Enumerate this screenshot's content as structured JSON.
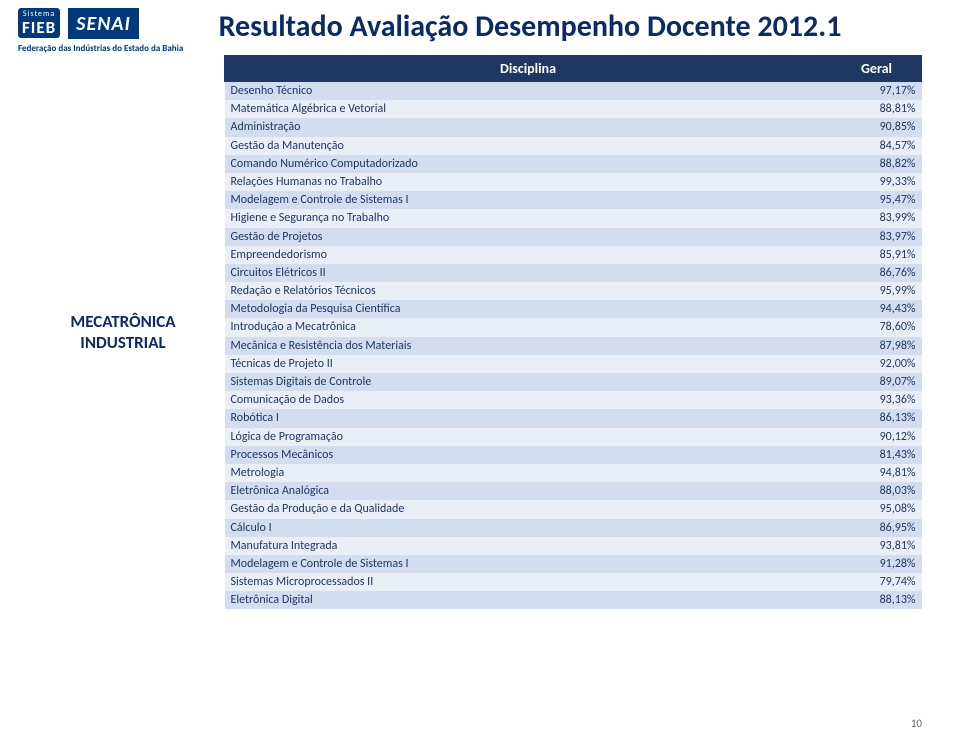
{
  "logo": {
    "sistema": "Sistema",
    "fieb": "FIEB",
    "senai": "SENAI",
    "federation": "Federação das Indústrias do Estado da Bahia"
  },
  "title": "Resultado Avaliação Desempenho Docente 2012.1",
  "category": "MECATRÔNICA INDUSTRIAL",
  "columns": {
    "discipline": "Disciplina",
    "value": "Geral"
  },
  "rows": [
    {
      "name": "Desenho Técnico",
      "pct": "97,17%"
    },
    {
      "name": "Matemática Algébrica e Vetorial",
      "pct": "88,81%"
    },
    {
      "name": "Administração",
      "pct": "90,85%"
    },
    {
      "name": "Gestão da Manutenção",
      "pct": "84,57%"
    },
    {
      "name": "Comando Numérico Computadorizado",
      "pct": "88,82%"
    },
    {
      "name": "Relações Humanas no Trabalho",
      "pct": "99,33%"
    },
    {
      "name": "Modelagem e Controle de Sistemas I",
      "pct": "95,47%"
    },
    {
      "name": "Higiene e Segurança no Trabalho",
      "pct": "83,99%"
    },
    {
      "name": "Gestão de Projetos",
      "pct": "83,97%"
    },
    {
      "name": "Empreendedorismo",
      "pct": "85,91%"
    },
    {
      "name": "Circuitos Elétricos II",
      "pct": "86,76%"
    },
    {
      "name": "Redação e Relatórios Técnicos",
      "pct": "95,99%"
    },
    {
      "name": "Metodologia da Pesquisa Científica",
      "pct": "94,43%"
    },
    {
      "name": "Introdução a Mecatrônica",
      "pct": "78,60%"
    },
    {
      "name": "Mecânica e Resistência dos Materiais",
      "pct": "87,98%"
    },
    {
      "name": "Técnicas de Projeto II",
      "pct": "92,00%"
    },
    {
      "name": "Sistemas Digitais de Controle",
      "pct": "89,07%"
    },
    {
      "name": "Comunicação de Dados",
      "pct": "93,36%"
    },
    {
      "name": "Robótica I",
      "pct": "86,13%"
    },
    {
      "name": "Lógica de Programação",
      "pct": "90,12%"
    },
    {
      "name": "Processos Mecânicos",
      "pct": "81,43%"
    },
    {
      "name": "Metrologia",
      "pct": "94,81%"
    },
    {
      "name": "Eletrônica Analógica",
      "pct": "88,03%"
    },
    {
      "name": "Gestão da Produção e da Qualidade",
      "pct": "95,08%"
    },
    {
      "name": "Cálculo I",
      "pct": "86,95%"
    },
    {
      "name": "Manufatura Integrada",
      "pct": "93,81%"
    },
    {
      "name": "Modelagem e Controle de Sistemas I",
      "pct": "91,28%"
    },
    {
      "name": "Sistemas Microprocessados II",
      "pct": "79,74%"
    },
    {
      "name": "Eletrônica Digital",
      "pct": "88,13%"
    }
  ],
  "page_number": "10",
  "styling": {
    "header_bg": "#1f3763",
    "header_fg": "#ffffff",
    "row_odd_bg": "#d2deef",
    "row_even_bg": "#eaeff7",
    "row_fg": "#1f3763",
    "title_color": "#0c2a66",
    "category_color": "#0c2a66",
    "title_fontsize_pt": 22,
    "row_fontsize_pt": 9,
    "header_fontsize_pt": 10
  }
}
